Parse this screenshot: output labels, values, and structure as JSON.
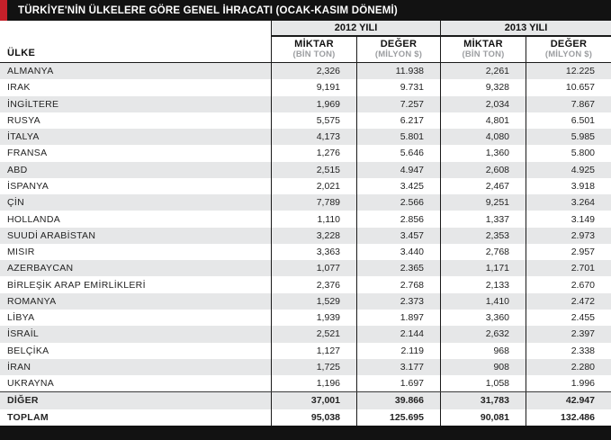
{
  "chart_data": {
    "type": "table",
    "title": "TÜRKİYE'NİN ÜLKELERE GÖRE GENEL İHRACATI (OCAK-KASIM DÖNEMİ)",
    "year_groups": [
      {
        "label": "2012 YILI"
      },
      {
        "label": "2013 YILI"
      }
    ],
    "col_headers": {
      "country": "ÜLKE",
      "amount_label": "MİKTAR",
      "amount_unit": "(BİN TON)",
      "value_label": "DEĞER",
      "value_unit": "(MİLYON $)"
    },
    "rows": [
      {
        "country": "ALMANYA",
        "m2012": "2,326",
        "d2012": "11.938",
        "m2013": "2,261",
        "d2013": "12.225",
        "bold": false,
        "separator": false
      },
      {
        "country": "IRAK",
        "m2012": "9,191",
        "d2012": "9.731",
        "m2013": "9,328",
        "d2013": "10.657",
        "bold": false,
        "separator": false
      },
      {
        "country": "İNGİLTERE",
        "m2012": "1,969",
        "d2012": "7.257",
        "m2013": "2,034",
        "d2013": "7.867",
        "bold": false,
        "separator": false
      },
      {
        "country": "RUSYA",
        "m2012": "5,575",
        "d2012": "6.217",
        "m2013": "4,801",
        "d2013": "6.501",
        "bold": false,
        "separator": false
      },
      {
        "country": "İTALYA",
        "m2012": "4,173",
        "d2012": "5.801",
        "m2013": "4,080",
        "d2013": "5.985",
        "bold": false,
        "separator": false
      },
      {
        "country": "FRANSA",
        "m2012": "1,276",
        "d2012": "5.646",
        "m2013": "1,360",
        "d2013": "5.800",
        "bold": false,
        "separator": false
      },
      {
        "country": "ABD",
        "m2012": "2,515",
        "d2012": "4.947",
        "m2013": "2,608",
        "d2013": "4.925",
        "bold": false,
        "separator": false
      },
      {
        "country": "İSPANYA",
        "m2012": "2,021",
        "d2012": "3.425",
        "m2013": "2,467",
        "d2013": "3.918",
        "bold": false,
        "separator": false
      },
      {
        "country": "ÇİN",
        "m2012": "7,789",
        "d2012": "2.566",
        "m2013": "9,251",
        "d2013": "3.264",
        "bold": false,
        "separator": false
      },
      {
        "country": "HOLLANDA",
        "m2012": "1,110",
        "d2012": "2.856",
        "m2013": "1,337",
        "d2013": "3.149",
        "bold": false,
        "separator": false
      },
      {
        "country": "SUUDİ ARABİSTAN",
        "m2012": "3,228",
        "d2012": "3.457",
        "m2013": "2,353",
        "d2013": "2.973",
        "bold": false,
        "separator": false
      },
      {
        "country": "MISIR",
        "m2012": "3,363",
        "d2012": "3.440",
        "m2013": "2,768",
        "d2013": "2.957",
        "bold": false,
        "separator": false
      },
      {
        "country": "AZERBAYCAN",
        "m2012": "1,077",
        "d2012": "2.365",
        "m2013": "1,171",
        "d2013": "2.701",
        "bold": false,
        "separator": false
      },
      {
        "country": "BİRLEŞİK ARAP EMİRLİKLERİ",
        "m2012": "2,376",
        "d2012": "2.768",
        "m2013": "2,133",
        "d2013": "2.670",
        "bold": false,
        "separator": false
      },
      {
        "country": "ROMANYA",
        "m2012": "1,529",
        "d2012": "2.373",
        "m2013": "1,410",
        "d2013": "2.472",
        "bold": false,
        "separator": false
      },
      {
        "country": "LİBYA",
        "m2012": "1,939",
        "d2012": "1.897",
        "m2013": "3,360",
        "d2013": "2.455",
        "bold": false,
        "separator": false
      },
      {
        "country": "İSRAİL",
        "m2012": "2,521",
        "d2012": "2.144",
        "m2013": "2,632",
        "d2013": "2.397",
        "bold": false,
        "separator": false
      },
      {
        "country": "BELÇİKA",
        "m2012": "1,127",
        "d2012": "2.119",
        "m2013": "968",
        "d2013": "2.338",
        "bold": false,
        "separator": false
      },
      {
        "country": "İRAN",
        "m2012": "1,725",
        "d2012": "3.177",
        "m2013": "908",
        "d2013": "2.280",
        "bold": false,
        "separator": false
      },
      {
        "country": "UKRAYNA",
        "m2012": "1,196",
        "d2012": "1.697",
        "m2013": "1,058",
        "d2013": "1.996",
        "bold": false,
        "separator": false
      },
      {
        "country": "DİĞER",
        "m2012": "37,001",
        "d2012": "39.866",
        "m2013": "31,783",
        "d2013": "42.947",
        "bold": true,
        "separator": true
      },
      {
        "country": "TOPLAM",
        "m2012": "95,038",
        "d2012": "125.695",
        "m2013": "90,081",
        "d2013": "132.486",
        "bold": true,
        "separator": false
      }
    ]
  },
  "colors": {
    "accent_red": "#c5202a",
    "bar_black": "#121212",
    "stripe_gray": "#e6e7e8",
    "unit_gray": "#9c9ea1",
    "line_black": "#1a1a1a"
  }
}
